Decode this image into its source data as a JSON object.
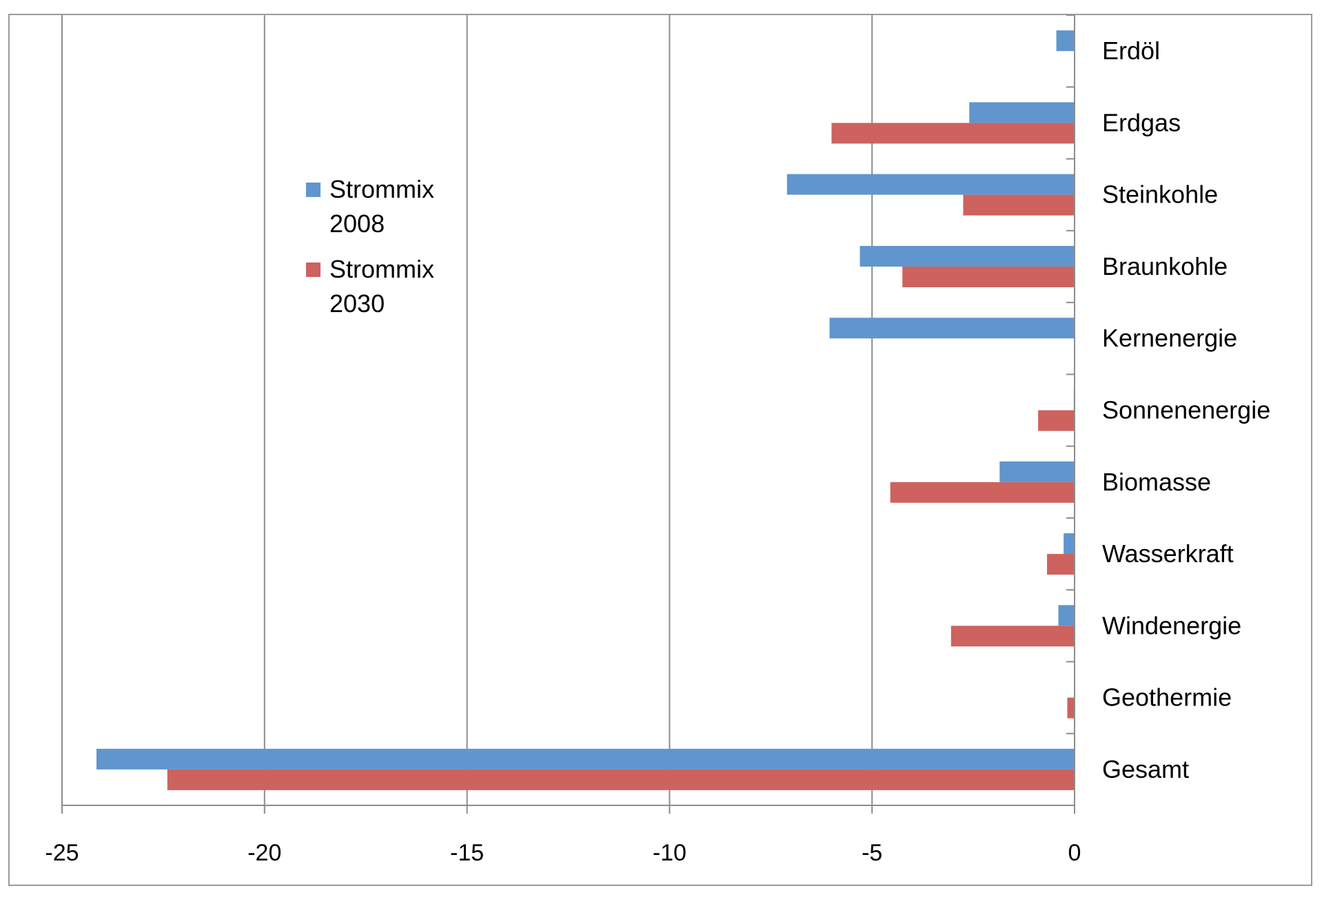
{
  "chart_data": {
    "type": "bar",
    "orientation": "horizontal",
    "categories": [
      "Erdöl",
      "Erdgas",
      "Steinkohle",
      "Braunkohle",
      "Kernenergie",
      "Sonnenenergie",
      "Biomasse",
      "Wasserkraft",
      "Windenergie",
      "Geothermie",
      "Gesamt"
    ],
    "series": [
      {
        "name": "Strommix 2008",
        "legend_lines": [
          "Strommix",
          "2008"
        ],
        "color": "#6096cd",
        "values": [
          -0.45,
          -2.6,
          -7.1,
          -5.3,
          -6.05,
          -0.02,
          -1.85,
          -0.27,
          -0.4,
          0,
          -24.15
        ]
      },
      {
        "name": "Strommix 2030",
        "legend_lines": [
          "Strommix",
          "2030"
        ],
        "color": "#cd625f",
        "values": [
          0,
          -6.0,
          -2.75,
          -4.25,
          0,
          -0.9,
          -4.55,
          -0.68,
          -3.05,
          -0.18,
          -22.4
        ]
      }
    ],
    "xlim": [
      -25,
      0
    ],
    "ticks": [
      -25,
      -20,
      -15,
      -10,
      -5,
      0
    ],
    "tick_labels": [
      "-25",
      "-20",
      "-15",
      "-10",
      "-5",
      "0"
    ],
    "grid": "vertical",
    "legend_position": "upper-left",
    "title": "",
    "xlabel": "",
    "ylabel": ""
  }
}
